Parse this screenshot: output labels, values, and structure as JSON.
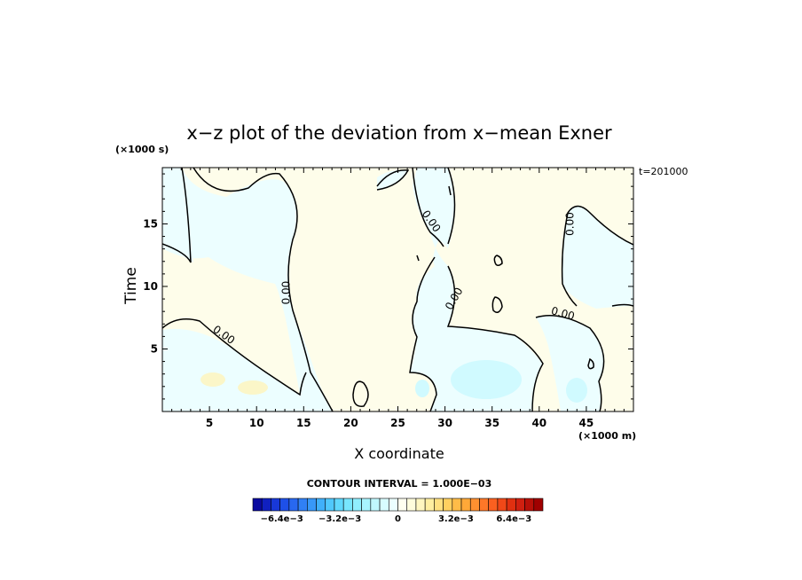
{
  "chart_data": {
    "type": "heatmap",
    "subtype": "filled-contour",
    "title": "x−z plot of the deviation from x−mean Exner",
    "xlabel": "X coordinate",
    "ylabel": "Time",
    "x_unit": "(×1000 m)",
    "y_unit": "(×1000 s)",
    "time_label": "t=201000",
    "xlim": [
      0,
      50
    ],
    "ylim": [
      0,
      19.5
    ],
    "x_ticks": [
      5,
      10,
      15,
      20,
      25,
      30,
      35,
      40,
      45
    ],
    "y_ticks": [
      5,
      10,
      15
    ],
    "contour_interval_text": "CONTOUR INTERVAL = 1.000E−03",
    "contour_labels": [
      {
        "text": "0.00",
        "x": 6.5,
        "y": 6.1,
        "angle": 35
      },
      {
        "text": "0.00",
        "x": 13.2,
        "y": 9.5,
        "angle": -90
      },
      {
        "text": "0.00",
        "x": 28.5,
        "y": 15.2,
        "angle": 55
      },
      {
        "text": "0.00",
        "x": 31.0,
        "y": 9.0,
        "angle": -60
      },
      {
        "text": "0.00",
        "x": 43.3,
        "y": 15.0,
        "angle": -90
      },
      {
        "text": "0.00",
        "x": 42.5,
        "y": 7.8,
        "angle": 15
      }
    ],
    "colorbar": {
      "min": -0.008,
      "max": 0.008,
      "levels": 32,
      "tick_labels": [
        "−6.4e−3",
        "−3.2e−3",
        "0",
        "3.2e−3",
        "6.4e−3"
      ],
      "tick_values": [
        -0.0064,
        -0.0032,
        0,
        0.0032,
        0.0064
      ],
      "colors": [
        "#0a0aa0",
        "#1020c0",
        "#1838d8",
        "#1e50e8",
        "#2868f0",
        "#3080f5",
        "#3898f8",
        "#40b0fa",
        "#50c8fc",
        "#60d8fd",
        "#78e6fe",
        "#90eefe",
        "#a8f4ff",
        "#c0f8ff",
        "#d8fcff",
        "#ecfeff",
        "#fffff0",
        "#fffcdc",
        "#fff6c0",
        "#ffeea0",
        "#ffe080",
        "#ffd060",
        "#ffbc48",
        "#ffa838",
        "#ff9030",
        "#ff7828",
        "#fa6020",
        "#f04818",
        "#e03010",
        "#d02010",
        "#b81008",
        "#a00000"
      ]
    },
    "field_colors": {
      "negative": "#ecfeff",
      "negative_medium": "#d0faff",
      "positive": "#fefdea",
      "positive_medium": "#fbf6c8"
    }
  }
}
